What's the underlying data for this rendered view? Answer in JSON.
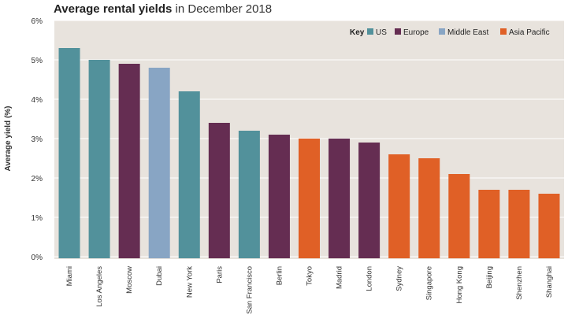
{
  "chart_data": {
    "type": "bar",
    "title": "Average rental yields",
    "subtitle": "in December 2018",
    "ylabel": "Average yield (%)",
    "xlabel": "",
    "ylim": [
      0,
      6
    ],
    "yticks": [
      "0%",
      "1%",
      "2%",
      "3%",
      "4%",
      "5%",
      "6%"
    ],
    "grid": true,
    "legend_title": "Key",
    "legend_placement": "top-right",
    "legend": [
      {
        "name": "US",
        "color": "#52919b"
      },
      {
        "name": "Europe",
        "color": "#652d52"
      },
      {
        "name": "Middle East",
        "color": "#88a5c4"
      },
      {
        "name": "Asia Pacific",
        "color": "#e06026"
      }
    ],
    "categories": [
      "Miami",
      "Los Angeles",
      "Moscow",
      "Dubai",
      "New York",
      "Paris",
      "San Francisco",
      "Berlin",
      "Tokyo",
      "Madrid",
      "London",
      "Sydney",
      "Singapore",
      "Hong Kong",
      "Beijing",
      "Shenzhen",
      "Shanghai"
    ],
    "regions": [
      "US",
      "US",
      "Europe",
      "Middle East",
      "US",
      "Europe",
      "US",
      "Europe",
      "Asia Pacific",
      "Europe",
      "Europe",
      "Asia Pacific",
      "Asia Pacific",
      "Asia Pacific",
      "Asia Pacific",
      "Asia Pacific",
      "Asia Pacific"
    ],
    "values": [
      5.3,
      5.0,
      4.9,
      4.8,
      4.2,
      3.4,
      3.2,
      3.1,
      3.0,
      3.0,
      2.9,
      2.6,
      2.5,
      2.1,
      1.7,
      1.7,
      1.6
    ],
    "background": "#e8e3dd"
  }
}
